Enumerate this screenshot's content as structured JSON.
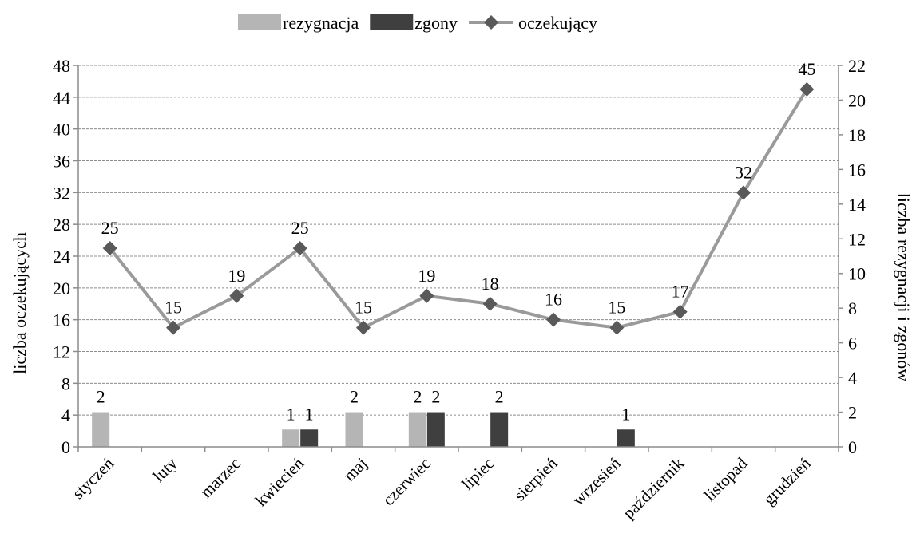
{
  "chart_data": {
    "type": "bar+line",
    "categories": [
      "styczeń",
      "luty",
      "marzec",
      "kwiecień",
      "maj",
      "czerwiec",
      "lipiec",
      "sierpień",
      "wrzesień",
      "październik",
      "listopad",
      "grudzień"
    ],
    "bar_series": [
      {
        "name": "rezygnacja",
        "color": "#b5b5b5",
        "values": [
          2,
          0,
          0,
          1,
          2,
          2,
          0,
          0,
          0,
          0,
          0,
          0
        ]
      },
      {
        "name": "zgony",
        "color": "#3f3f3f",
        "values": [
          0,
          0,
          0,
          1,
          0,
          2,
          2,
          0,
          1,
          0,
          0,
          0
        ]
      }
    ],
    "line_series": [
      {
        "name": "oczekujący",
        "color": "#9a9a9a",
        "marker_color": "#595959",
        "values": [
          25,
          15,
          19,
          25,
          15,
          19,
          18,
          16,
          15,
          17,
          32,
          45
        ]
      }
    ],
    "ylabel_left": "liczba oczekujących",
    "ylabel_right": "liczba rezygnacji i zgonów",
    "ylim_left": [
      0,
      48
    ],
    "yticks_left": [
      0,
      4,
      8,
      12,
      16,
      20,
      24,
      28,
      32,
      36,
      40,
      44,
      48
    ],
    "ylim_right": [
      0,
      22
    ],
    "yticks_right": [
      0,
      2,
      4,
      6,
      8,
      10,
      12,
      14,
      16,
      18,
      20,
      22
    ],
    "grid": true,
    "legend_position": "top"
  }
}
